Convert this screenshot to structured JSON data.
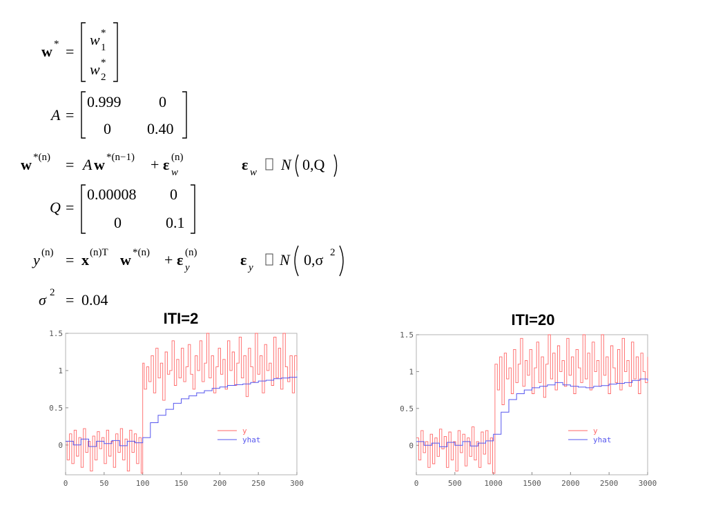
{
  "equations": {
    "w_star": {
      "lhs": "w",
      "sup": "*",
      "eq": "=",
      "top": "w",
      "top_sub": "1",
      "top_sup": "*",
      "bot": "w",
      "bot_sub": "2",
      "bot_sup": "*"
    },
    "A_matrix": {
      "lhs": "A",
      "eq": "=",
      "a11": "0.999",
      "a12": "0",
      "a21": "0",
      "a22": "0.40"
    },
    "w_dynamics": {
      "lhs_sup": "*(n)",
      "rhs_A": "A",
      "rhs_w_sup": "*(n−1)",
      "plus": "+",
      "eps_sub": "w",
      "eps_sup": "(n)",
      "dist_eps_sub": "w",
      "dist_N": "N",
      "dist_args": "0,Q"
    },
    "Q_matrix": {
      "lhs": "Q",
      "eq": "=",
      "q11": "0.00008",
      "q12": "0",
      "q21": "0",
      "q22": "0.1"
    },
    "y_obs": {
      "lhs": "y",
      "lhs_sup": "(n)",
      "x_sup": "(n)T",
      "w_sup": "*(n)",
      "plus": "+",
      "eps_sub": "y",
      "eps_sup": "(n)",
      "dist_eps_sub": "y",
      "dist_N": "N",
      "dist_args": "0,σ",
      "dist_args_sup": "2"
    },
    "sigma": {
      "lhs": "σ",
      "sup": "2",
      "eq": "=",
      "value": "0.04"
    }
  },
  "colors": {
    "y": "#ff6666",
    "yhat": "#5555ee"
  },
  "chart_data": [
    {
      "type": "line",
      "title": "ITI=2",
      "xlim": [
        0,
        300
      ],
      "ylim": [
        -0.4,
        1.5
      ],
      "xticks": [
        "0",
        "50",
        "100",
        "150",
        "200",
        "250",
        "300"
      ],
      "yticks": [
        "0",
        "0.5",
        "1",
        "1.5"
      ],
      "legend": {
        "position": "lower-right"
      },
      "series": [
        {
          "name": "y",
          "style": "step",
          "x": [
            0,
            2,
            5,
            8,
            11,
            14,
            17,
            20,
            23,
            26,
            29,
            32,
            35,
            38,
            41,
            44,
            47,
            50,
            53,
            56,
            59,
            62,
            65,
            68,
            71,
            74,
            77,
            80,
            83,
            86,
            89,
            92,
            95,
            98,
            100,
            102,
            105,
            108,
            111,
            114,
            117,
            120,
            123,
            126,
            129,
            132,
            135,
            138,
            141,
            144,
            147,
            150,
            153,
            156,
            159,
            162,
            165,
            168,
            171,
            174,
            177,
            180,
            183,
            186,
            189,
            192,
            195,
            198,
            201,
            204,
            207,
            210,
            213,
            216,
            219,
            222,
            225,
            228,
            231,
            234,
            237,
            240,
            243,
            246,
            249,
            252,
            255,
            258,
            261,
            264,
            267,
            270,
            273,
            276,
            279,
            282,
            285,
            288,
            291,
            294,
            297,
            300
          ],
          "values": [
            0.05,
            -0.2,
            0.15,
            -0.25,
            0.2,
            -0.15,
            0.1,
            -0.3,
            0.22,
            -0.1,
            0.05,
            -0.35,
            0.12,
            -0.2,
            0.18,
            -0.05,
            0.1,
            -0.25,
            0.2,
            -0.15,
            0.05,
            -0.3,
            0.15,
            -0.1,
            0.22,
            -0.2,
            0.08,
            -0.35,
            0.2,
            -0.1,
            0.15,
            -0.25,
            0.1,
            -0.38,
            1.1,
            0.75,
            1.05,
            0.85,
            1.2,
            0.7,
            1.3,
            0.9,
            1.1,
            0.6,
            1.25,
            0.95,
            1.0,
            1.4,
            0.8,
            1.15,
            0.9,
            1.3,
            0.85,
            1.05,
            1.35,
            0.95,
            0.75,
            1.2,
            1.0,
            1.4,
            0.85,
            1.1,
            1.5,
            0.9,
            1.2,
            0.7,
            1.05,
            1.3,
            0.95,
            1.15,
            0.75,
            1.4,
            1.0,
            1.25,
            0.8,
            1.1,
            1.45,
            0.9,
            1.2,
            0.65,
            1.3,
            1.05,
            0.85,
            1.5,
            0.95,
            1.2,
            0.7,
            1.35,
            1.0,
            1.1,
            0.8,
            1.45,
            0.9,
            1.3,
            0.75,
            1.5,
            1.05,
            0.85,
            1.2,
            0.7,
            1.2,
            1.0
          ]
        },
        {
          "name": "yhat",
          "style": "step",
          "x": [
            0,
            10,
            20,
            30,
            40,
            50,
            60,
            70,
            80,
            90,
            100,
            110,
            120,
            130,
            140,
            150,
            160,
            170,
            180,
            190,
            200,
            210,
            220,
            230,
            240,
            250,
            260,
            270,
            280,
            290,
            300
          ],
          "values": [
            0.05,
            0.0,
            0.08,
            -0.02,
            0.05,
            0.02,
            0.06,
            -0.01,
            0.05,
            0.03,
            0.1,
            0.3,
            0.4,
            0.48,
            0.56,
            0.62,
            0.66,
            0.7,
            0.73,
            0.76,
            0.78,
            0.8,
            0.81,
            0.82,
            0.84,
            0.86,
            0.87,
            0.89,
            0.9,
            0.91,
            0.92
          ]
        }
      ]
    },
    {
      "type": "line",
      "title": "ITI=20",
      "xlim": [
        0,
        3000
      ],
      "ylim": [
        -0.4,
        1.5
      ],
      "xticks": [
        "0",
        "500",
        "1000",
        "1500",
        "2000",
        "2500",
        "3000"
      ],
      "yticks": [
        "0",
        "0.5",
        "1",
        "1.5"
      ],
      "legend": {
        "position": "lower-right"
      },
      "series": [
        {
          "name": "y",
          "style": "step",
          "x": [
            0,
            30,
            60,
            90,
            120,
            150,
            180,
            210,
            240,
            270,
            300,
            330,
            360,
            390,
            420,
            450,
            480,
            510,
            540,
            570,
            600,
            630,
            660,
            690,
            720,
            750,
            780,
            810,
            840,
            870,
            900,
            930,
            960,
            990,
            1020,
            1050,
            1080,
            1110,
            1140,
            1170,
            1200,
            1230,
            1260,
            1290,
            1320,
            1350,
            1380,
            1410,
            1440,
            1470,
            1500,
            1530,
            1560,
            1590,
            1620,
            1650,
            1680,
            1710,
            1740,
            1770,
            1800,
            1830,
            1860,
            1890,
            1920,
            1950,
            1980,
            2010,
            2040,
            2070,
            2100,
            2130,
            2160,
            2190,
            2220,
            2250,
            2280,
            2310,
            2340,
            2370,
            2400,
            2430,
            2460,
            2490,
            2520,
            2550,
            2580,
            2610,
            2640,
            2670,
            2700,
            2730,
            2760,
            2790,
            2820,
            2850,
            2880,
            2910,
            2940,
            2970,
            3000
          ],
          "values": [
            0.1,
            -0.2,
            0.2,
            -0.1,
            0.05,
            -0.3,
            0.15,
            -0.25,
            0.1,
            -0.15,
            0.22,
            -0.05,
            0.12,
            -0.3,
            0.18,
            -0.2,
            0.05,
            -0.35,
            0.2,
            -0.1,
            0.15,
            -0.28,
            0.1,
            -0.15,
            0.25,
            -0.2,
            0.05,
            -0.3,
            0.18,
            -0.12,
            0.2,
            -0.25,
            0.1,
            -0.38,
            1.1,
            0.75,
            1.2,
            0.55,
            1.25,
            0.9,
            1.05,
            0.7,
            1.3,
            0.85,
            1.1,
            1.45,
            0.8,
            1.15,
            0.95,
            1.3,
            0.7,
            1.05,
            1.4,
            0.85,
            1.2,
            0.65,
            1.1,
            1.5,
            0.9,
            1.25,
            0.75,
            1.35,
            1.0,
            1.15,
            0.8,
            1.45,
            0.95,
            1.2,
            0.7,
            1.3,
            1.05,
            0.85,
            1.5,
            0.9,
            1.25,
            0.75,
            1.4,
            1.0,
            1.15,
            0.8,
            1.5,
            0.95,
            1.2,
            0.7,
            1.35,
            1.05,
            0.85,
            1.3,
            0.75,
            1.45,
            1.0,
            1.15,
            0.8,
            1.4,
            0.9,
            1.2,
            0.7,
            1.25,
            1.0,
            0.85,
            1.2
          ]
        },
        {
          "name": "yhat",
          "style": "step",
          "x": [
            0,
            100,
            200,
            300,
            400,
            500,
            600,
            700,
            800,
            900,
            1000,
            1100,
            1200,
            1300,
            1400,
            1500,
            1600,
            1700,
            1800,
            1900,
            2000,
            2100,
            2200,
            2300,
            2400,
            2500,
            2600,
            2700,
            2800,
            2900,
            3000
          ],
          "values": [
            0.05,
            0.0,
            0.03,
            -0.02,
            0.04,
            0.0,
            0.05,
            -0.01,
            0.03,
            0.06,
            0.15,
            0.45,
            0.62,
            0.7,
            0.75,
            0.78,
            0.8,
            0.82,
            0.85,
            0.82,
            0.8,
            0.79,
            0.78,
            0.8,
            0.81,
            0.83,
            0.84,
            0.85,
            0.88,
            0.9,
            0.87
          ]
        }
      ]
    }
  ]
}
